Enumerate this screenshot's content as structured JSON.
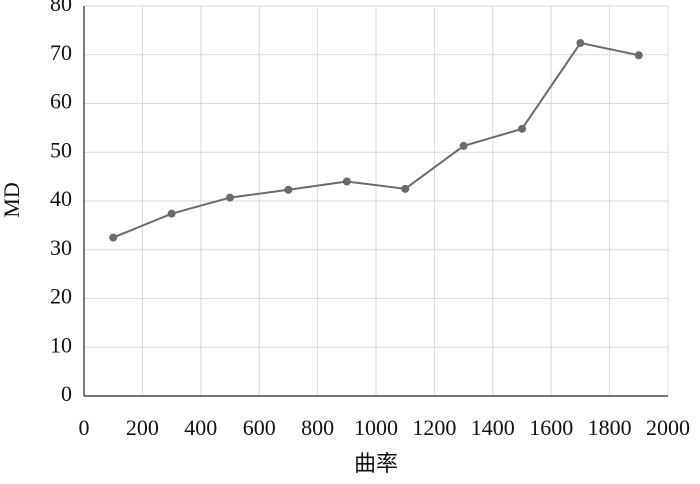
{
  "chart_data": {
    "type": "line",
    "x_label": "曲率",
    "y_label": "MD",
    "x": [
      100,
      300,
      500,
      700,
      900,
      1100,
      1300,
      1500,
      1700,
      1900
    ],
    "series": [
      {
        "name": "MD",
        "color": "#6b6b6b",
        "values": [
          32.5,
          37.4,
          40.7,
          42.3,
          44.0,
          42.5,
          51.3,
          54.8,
          72.4,
          69.9
        ]
      }
    ],
    "xlim": [
      0,
      2000
    ],
    "xticks": [
      0,
      200,
      400,
      600,
      800,
      1000,
      1200,
      1400,
      1600,
      1800,
      2000
    ],
    "ylim": [
      0,
      80
    ],
    "yticks": [
      0,
      10,
      20,
      30,
      40,
      50,
      60,
      70,
      80
    ],
    "grid": true
  }
}
